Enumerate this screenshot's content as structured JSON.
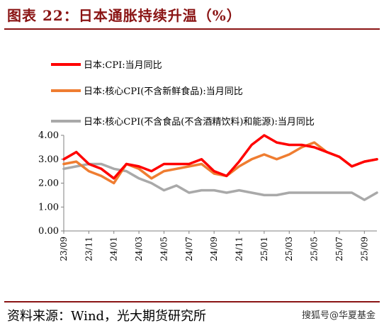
{
  "header": {
    "title": "图表 22：日本通胀持续升温（%）"
  },
  "footer": {
    "source": "资料来源：Wind，光大期货研究所",
    "watermark": "搜狐号@华夏基金"
  },
  "chart_data": {
    "type": "line",
    "title": "图表 22：日本通胀持续升温（%）",
    "xlabel": "",
    "ylabel": "",
    "ylim": [
      0,
      4
    ],
    "yticks": [
      "0.00",
      "1.00",
      "2.00",
      "3.00",
      "4.00"
    ],
    "x": [
      "23/09",
      "23/10",
      "23/11",
      "23/12",
      "24/01",
      "24/02",
      "24/03",
      "24/04",
      "24/05",
      "24/06",
      "24/07",
      "24/08",
      "24/09",
      "24/10",
      "24/11",
      "24/12",
      "25/01",
      "25/02",
      "25/03",
      "25/04",
      "25/05",
      "25/06",
      "25/07",
      "25/08",
      "25/09",
      "25/10"
    ],
    "xtick_labels": [
      "23/09",
      "23/11",
      "24/01",
      "24/03",
      "24/05",
      "24/07",
      "24/09",
      "24/11",
      "25/01",
      "25/03",
      "25/05",
      "25/07",
      "25/09"
    ],
    "grid": false,
    "legend_position": "top-left",
    "series": [
      {
        "name": "日本:CPI:当月同比",
        "color": "#ff0000",
        "width": 3.5,
        "values": [
          3.0,
          3.3,
          2.8,
          2.6,
          2.2,
          2.8,
          2.7,
          2.5,
          2.8,
          2.8,
          2.8,
          3.0,
          2.5,
          2.3,
          2.9,
          3.6,
          4.0,
          3.7,
          3.6,
          3.6,
          3.5,
          3.3,
          3.1,
          2.7,
          2.9,
          3.0
        ]
      },
      {
        "name": "日本:核心CPI(不含新鲜食品):当月同比",
        "color": "#ef7d31",
        "width": 3.5,
        "values": [
          2.8,
          2.9,
          2.5,
          2.3,
          2.0,
          2.8,
          2.6,
          2.2,
          2.5,
          2.6,
          2.7,
          2.8,
          2.4,
          2.3,
          2.7,
          3.0,
          3.2,
          3.0,
          3.2,
          3.5,
          3.7,
          3.3,
          3.1,
          2.7,
          2.9,
          3.0
        ]
      },
      {
        "name": "日本:核心CPI(不含食品(不含酒精饮料)和能源):当月同比",
        "color": "#a9a9a9",
        "width": 3.5,
        "values": [
          2.6,
          2.7,
          2.8,
          2.8,
          2.6,
          2.5,
          2.2,
          2.0,
          1.7,
          1.9,
          1.6,
          1.7,
          1.7,
          1.6,
          1.7,
          1.6,
          1.5,
          1.5,
          1.6,
          1.6,
          1.6,
          1.6,
          1.6,
          1.6,
          1.3,
          1.6
        ]
      }
    ]
  }
}
